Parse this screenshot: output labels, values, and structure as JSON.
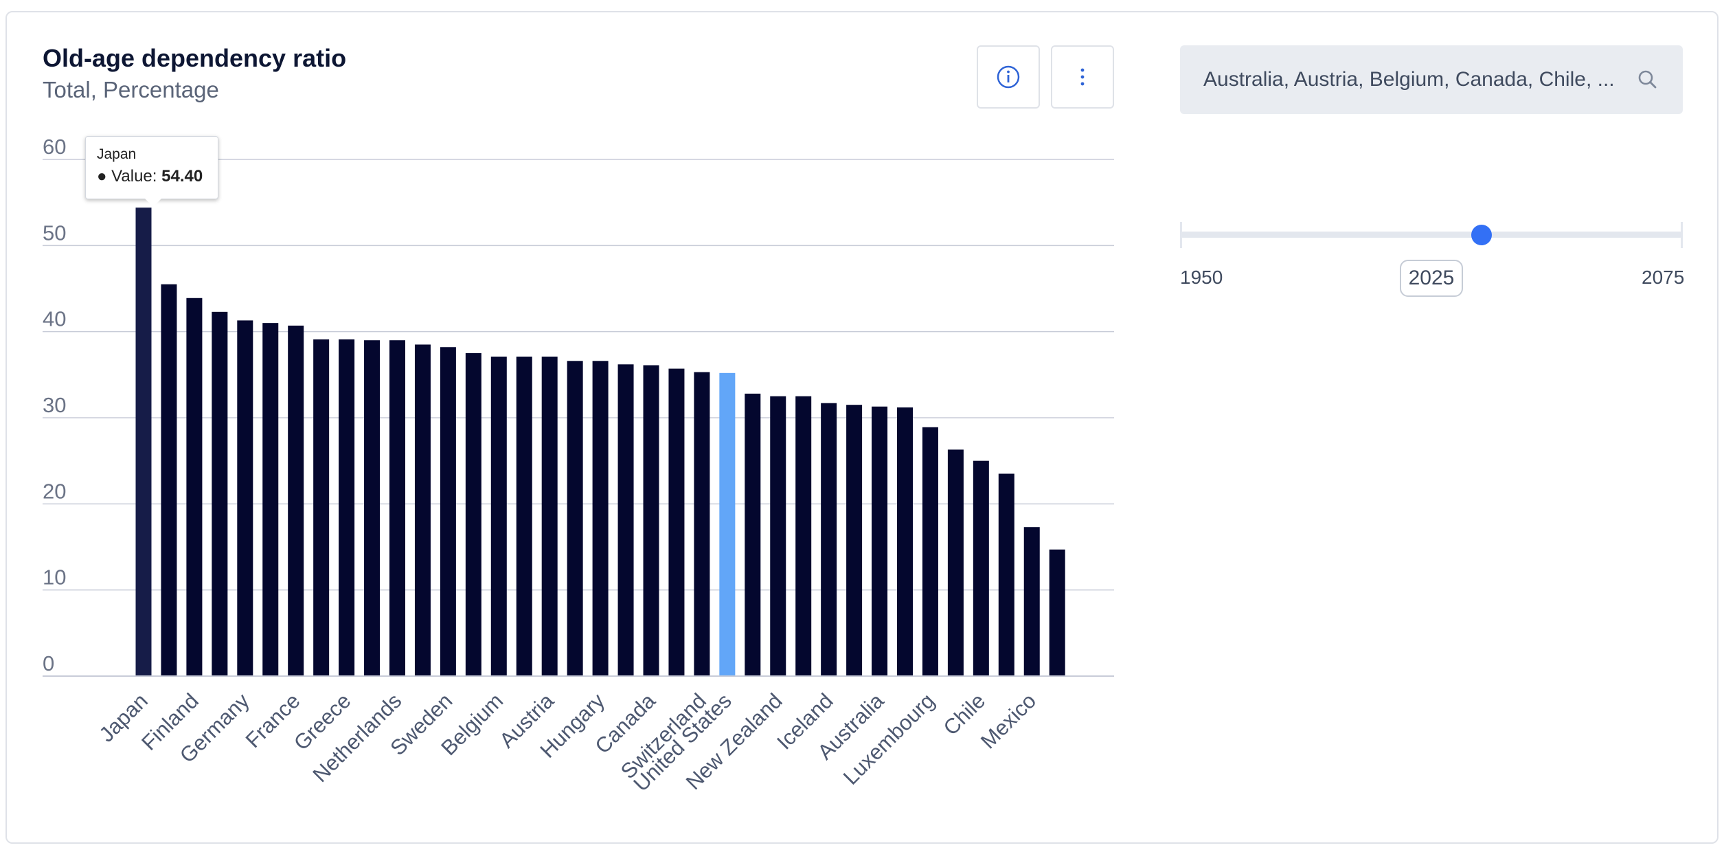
{
  "header": {
    "title": "Old-age dependency ratio",
    "subtitle": "Total, Percentage"
  },
  "icons": {
    "info": "info-circle-icon",
    "menu": "vertical-ellipsis-icon",
    "search": "search-icon"
  },
  "country_selector": {
    "value": "Australia, Austria, Belgium, Canada, Chile, ..."
  },
  "year_slider": {
    "min_label": "1950",
    "max_label": "2075",
    "current_label": "2025",
    "min": 1950,
    "max": 2075,
    "value": 2025
  },
  "tooltip": {
    "country": "Japan",
    "label": "Value:",
    "value": "54.40"
  },
  "colors": {
    "bar": "#04072e",
    "bar_hovered": "#161c48",
    "bar_highlight": "#62a6f8",
    "grid": "#c8ccd8",
    "tick_text": "#6b7386",
    "category_text": "#4d5870",
    "slider_thumb": "#3370f5",
    "accent_icon": "#2e63d6"
  },
  "chart_data": {
    "type": "bar",
    "ylim": [
      0,
      60
    ],
    "yticks": [
      "0",
      "10",
      "20",
      "30",
      "40",
      "50",
      "60"
    ],
    "grid": true,
    "highlighted": "United States",
    "hovered": "Japan",
    "categories": [
      "Japan",
      "Finland",
      "Germany",
      "France",
      "Greece",
      "Netherlands",
      "Sweden",
      "Belgium",
      "Austria",
      "Hungary",
      "Canada",
      "Switzerland",
      "United States",
      "New Zealand",
      "Iceland",
      "Australia",
      "Luxembourg",
      "Chile",
      "Mexico"
    ],
    "bars": [
      {
        "country": "Japan",
        "value": 54.4
      },
      {
        "country": "",
        "value": 45.5
      },
      {
        "country": "Finland",
        "value": 43.9
      },
      {
        "country": "",
        "value": 42.3
      },
      {
        "country": "Germany",
        "value": 41.3
      },
      {
        "country": "",
        "value": 41.0
      },
      {
        "country": "France",
        "value": 40.7
      },
      {
        "country": "",
        "value": 39.1
      },
      {
        "country": "Greece",
        "value": 39.1
      },
      {
        "country": "",
        "value": 39.0
      },
      {
        "country": "Netherlands",
        "value": 39.0
      },
      {
        "country": "",
        "value": 38.5
      },
      {
        "country": "Sweden",
        "value": 38.2
      },
      {
        "country": "",
        "value": 37.5
      },
      {
        "country": "Belgium",
        "value": 37.1
      },
      {
        "country": "",
        "value": 37.1
      },
      {
        "country": "Austria",
        "value": 37.1
      },
      {
        "country": "",
        "value": 36.6
      },
      {
        "country": "Hungary",
        "value": 36.6
      },
      {
        "country": "",
        "value": 36.2
      },
      {
        "country": "Canada",
        "value": 36.1
      },
      {
        "country": "",
        "value": 35.7
      },
      {
        "country": "Switzerland",
        "value": 35.3
      },
      {
        "country": "United States",
        "value": 35.2
      },
      {
        "country": "",
        "value": 32.8
      },
      {
        "country": "New Zealand",
        "value": 32.5
      },
      {
        "country": "",
        "value": 32.5
      },
      {
        "country": "Iceland",
        "value": 31.7
      },
      {
        "country": "",
        "value": 31.5
      },
      {
        "country": "Australia",
        "value": 31.3
      },
      {
        "country": "",
        "value": 31.2
      },
      {
        "country": "Luxembourg",
        "value": 28.9
      },
      {
        "country": "",
        "value": 26.3
      },
      {
        "country": "Chile",
        "value": 25.0
      },
      {
        "country": "",
        "value": 23.5
      },
      {
        "country": "Mexico",
        "value": 17.3
      },
      {
        "country": "",
        "value": 14.7
      }
    ]
  }
}
